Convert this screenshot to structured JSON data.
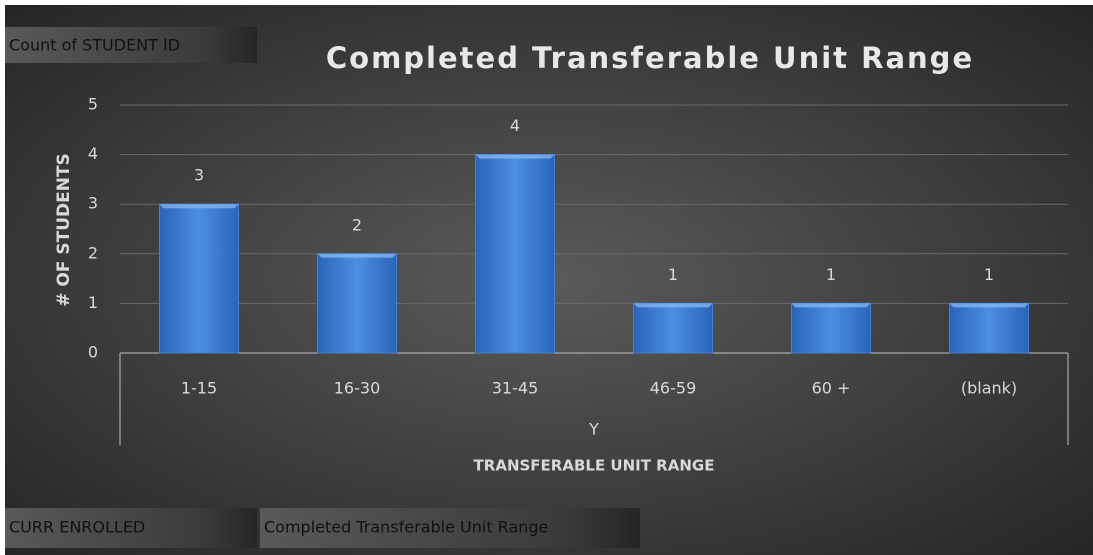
{
  "chart_data": {
    "type": "bar",
    "title": "Completed Transferable Unit Range",
    "categories": [
      "1-15",
      "16-30",
      "31-45",
      "46-59",
      "60 +",
      "(blank)"
    ],
    "values": [
      3,
      2,
      4,
      1,
      1,
      1
    ],
    "color": "#3f82d8",
    "ylim": [
      0,
      5
    ],
    "yticks": [
      0,
      1,
      2,
      3,
      4,
      5
    ],
    "grid": true,
    "y_label": "# OF STUDENTS",
    "x_label": "TRANSFERABLE UNIT RANGE",
    "category_group": "Y",
    "field_buttons": {
      "value": "Count of STUDENT ID",
      "filter": "CURR ENROLLED",
      "axis": "Completed Transferable Unit Range"
    }
  }
}
